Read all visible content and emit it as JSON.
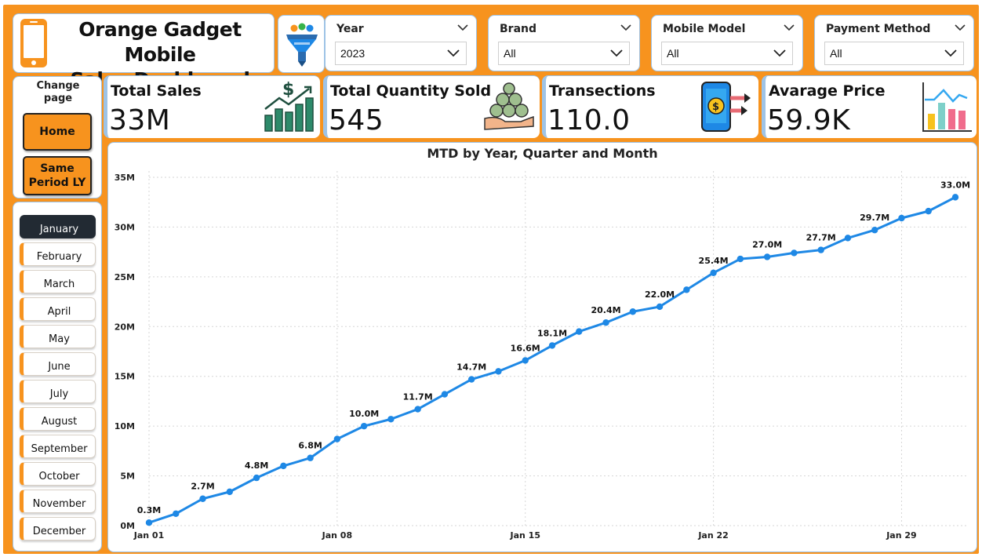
{
  "header": {
    "title_line1": "Orange Gadget Mobile",
    "title_line2": "Sales Dashboard",
    "icon": "mobile-phone-icon",
    "filter_icon": "funnel-filter-icon"
  },
  "filters": [
    {
      "label": "Year",
      "value": "2023"
    },
    {
      "label": "Brand",
      "value": "All"
    },
    {
      "label": "Mobile Model",
      "value": "All"
    },
    {
      "label": "Payment Method",
      "value": "All"
    }
  ],
  "nav": {
    "title": "Change page",
    "home_label": "Home",
    "sply_label": "Same Period LY"
  },
  "months": [
    "January",
    "February",
    "March",
    "April",
    "May",
    "June",
    "July",
    "August",
    "September",
    "October",
    "November",
    "December"
  ],
  "active_month": "January",
  "kpis": [
    {
      "title": "Total Sales",
      "value": "33M",
      "icon": "sales-growth-chart-icon"
    },
    {
      "title": "Total Quantity Sold",
      "value": "545",
      "icon": "money-bags-hand-icon"
    },
    {
      "title": "Transections",
      "value": "110.0",
      "icon": "mobile-payment-icon"
    },
    {
      "title": "Avarage Price",
      "value": "59.9K",
      "icon": "bar-chart-icon"
    }
  ],
  "colors": {
    "accent": "#F7931E",
    "line": "#1E88E5",
    "card_border": "#9ec3e6",
    "active_month": "#222a33"
  },
  "chart_data": {
    "type": "line",
    "title": "MTD by Year, Quarter and Month",
    "xlabel": "",
    "ylabel": "",
    "x": [
      "Jan 01",
      "Jan 02",
      "Jan 03",
      "Jan 04",
      "Jan 05",
      "Jan 06",
      "Jan 07",
      "Jan 08",
      "Jan 09",
      "Jan 10",
      "Jan 11",
      "Jan 12",
      "Jan 13",
      "Jan 14",
      "Jan 15",
      "Jan 16",
      "Jan 17",
      "Jan 18",
      "Jan 19",
      "Jan 20",
      "Jan 21",
      "Jan 22",
      "Jan 23",
      "Jan 24",
      "Jan 25",
      "Jan 26",
      "Jan 27",
      "Jan 28",
      "Jan 29",
      "Jan 30",
      "Jan 31"
    ],
    "x_tick_labels": [
      "Jan 01",
      "Jan 08",
      "Jan 15",
      "Jan 22",
      "Jan 29"
    ],
    "y_tick_labels": [
      "0M",
      "5M",
      "10M",
      "15M",
      "20M",
      "25M",
      "30M",
      "35M"
    ],
    "ylim": [
      0,
      35
    ],
    "y_unit": "M",
    "values": [
      0.3,
      1.2,
      2.7,
      3.4,
      4.8,
      6.0,
      6.8,
      8.7,
      10.0,
      10.7,
      11.7,
      13.2,
      14.7,
      15.5,
      16.6,
      18.1,
      19.5,
      20.4,
      21.5,
      22.0,
      23.7,
      25.4,
      26.8,
      27.0,
      27.4,
      27.7,
      28.9,
      29.7,
      30.9,
      31.6,
      33.0
    ],
    "data_labels": [
      {
        "index": 0,
        "text": "0.3M"
      },
      {
        "index": 2,
        "text": "2.7M"
      },
      {
        "index": 4,
        "text": "4.8M"
      },
      {
        "index": 6,
        "text": "6.8M"
      },
      {
        "index": 8,
        "text": "10.0M"
      },
      {
        "index": 10,
        "text": "11.7M"
      },
      {
        "index": 12,
        "text": "14.7M"
      },
      {
        "index": 14,
        "text": "16.6M"
      },
      {
        "index": 15,
        "text": "18.1M"
      },
      {
        "index": 17,
        "text": "20.4M"
      },
      {
        "index": 19,
        "text": "22.0M"
      },
      {
        "index": 21,
        "text": "25.4M"
      },
      {
        "index": 23,
        "text": "27.0M"
      },
      {
        "index": 25,
        "text": "27.7M"
      },
      {
        "index": 27,
        "text": "29.7M"
      },
      {
        "index": 30,
        "text": "33.0M"
      }
    ],
    "grid": true,
    "legend": "none"
  }
}
